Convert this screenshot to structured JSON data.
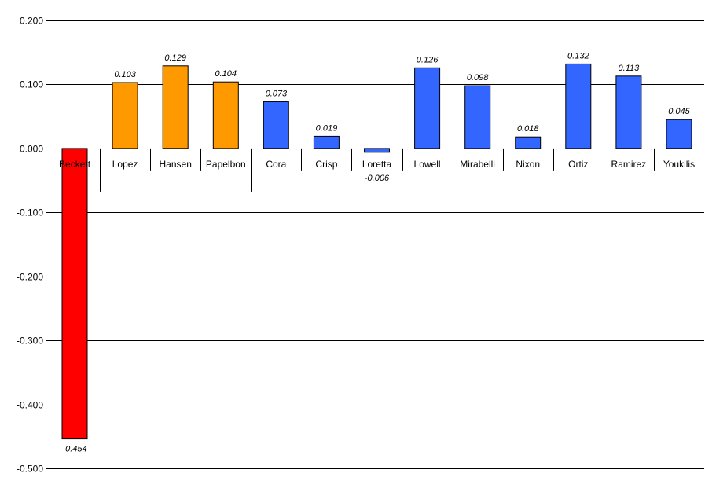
{
  "chart_data": {
    "type": "bar",
    "title": "",
    "xlabel": "",
    "ylabel": "",
    "ylim": [
      -0.5,
      0.2
    ],
    "yticks": [
      "0.200",
      "0.100",
      "0.000",
      "-0.100",
      "-0.200",
      "-0.300",
      "-0.400",
      "-0.500"
    ],
    "grid": true,
    "categories": [
      "Beckett",
      "Lopez",
      "Hansen",
      "Papelbon",
      "Cora",
      "Crisp",
      "Loretta",
      "Lowell",
      "Mirabelli",
      "Nixon",
      "Ortiz",
      "Ramirez",
      "Youkilis"
    ],
    "values": [
      -0.454,
      0.103,
      0.129,
      0.104,
      0.073,
      0.019,
      -0.006,
      0.126,
      0.098,
      0.018,
      0.132,
      0.113,
      0.045
    ],
    "value_labels": [
      "-0.454",
      "0.103",
      "0.129",
      "0.104",
      "0.073",
      "0.019",
      "-0.006",
      "0.126",
      "0.098",
      "0.018",
      "0.132",
      "0.113",
      "0.045"
    ],
    "group_breaks_after": [
      0,
      3
    ],
    "bar_colors": [
      "#ff0000",
      "#ff9900",
      "#ff9900",
      "#ff9900",
      "#3366ff",
      "#3366ff",
      "#3366ff",
      "#3366ff",
      "#3366ff",
      "#3366ff",
      "#3366ff",
      "#3366ff",
      "#3366ff"
    ]
  }
}
